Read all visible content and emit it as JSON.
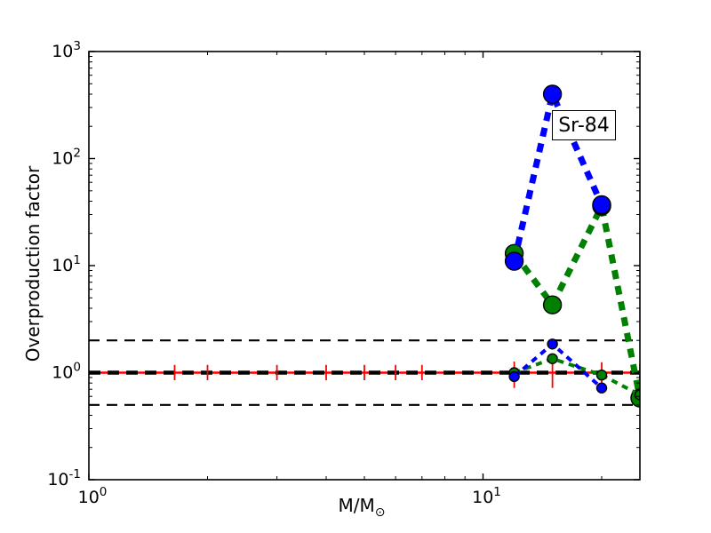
{
  "figure": {
    "background": "#ffffff"
  },
  "chart_data": {
    "type": "line",
    "title": "",
    "xlabel": "M/M⊙",
    "xlabel_main": "M/M",
    "xlabel_sub": "⊙",
    "ylabel": "Overproduction factor",
    "xscale": "log",
    "yscale": "log",
    "xlim": [
      1,
      25
    ],
    "ylim": [
      0.1,
      1000
    ],
    "grid": false,
    "legend": "none",
    "annotation": {
      "label": "Sr-84"
    },
    "x_ticks": [
      {
        "value": 1,
        "base": "10",
        "exp": "0"
      },
      {
        "value": 10,
        "base": "10",
        "exp": "1"
      }
    ],
    "x_minor_ticks": [
      2,
      3,
      4,
      5,
      6,
      7,
      8,
      9,
      20
    ],
    "y_ticks": [
      {
        "value": 1000,
        "base": "10",
        "exp": "3"
      },
      {
        "value": 100,
        "base": "10",
        "exp": "2"
      },
      {
        "value": 10,
        "base": "10",
        "exp": "1"
      },
      {
        "value": 1,
        "base": "10",
        "exp": "0"
      },
      {
        "value": 0.1,
        "base": "10",
        "exp": "-1"
      }
    ],
    "y_minor_ticks": [
      0.2,
      0.3,
      0.4,
      0.5,
      0.6,
      0.7,
      0.8,
      0.9,
      2,
      3,
      4,
      5,
      6,
      7,
      8,
      9,
      20,
      30,
      40,
      50,
      60,
      70,
      80,
      90,
      200,
      300,
      400,
      500,
      600,
      700,
      800,
      900
    ],
    "reference_lines": [
      {
        "name": "solar-ratio-line",
        "y": 1.0,
        "color": "#ff0000",
        "width": 2.5,
        "dash": null
      },
      {
        "name": "unity-line",
        "y": 1.0,
        "color": "#000000",
        "width": 4.5,
        "dash": [
          13,
          8
        ]
      },
      {
        "name": "upper-band-line",
        "y": 2.0,
        "color": "#000000",
        "width": 2.2,
        "dash": [
          12,
          8
        ]
      },
      {
        "name": "lower-band-line",
        "y": 0.5,
        "color": "#000000",
        "width": 2.2,
        "dash": [
          12,
          8
        ]
      }
    ],
    "error_bars": {
      "name": "solar-uncertainty-bars",
      "color": "#ff0000",
      "points": [
        {
          "x": 1.65,
          "lo": 0.85,
          "hi": 1.18
        },
        {
          "x": 2,
          "lo": 0.85,
          "hi": 1.18
        },
        {
          "x": 3,
          "lo": 0.85,
          "hi": 1.18
        },
        {
          "x": 4,
          "lo": 0.85,
          "hi": 1.18
        },
        {
          "x": 5,
          "lo": 0.85,
          "hi": 1.18
        },
        {
          "x": 6,
          "lo": 0.85,
          "hi": 1.18
        },
        {
          "x": 7,
          "lo": 0.85,
          "hi": 1.18
        },
        {
          "x": 12,
          "lo": 0.72,
          "hi": 1.27
        },
        {
          "x": 15,
          "lo": 0.72,
          "hi": 1.3
        },
        {
          "x": 20,
          "lo": 0.75,
          "hi": 1.25
        },
        {
          "x": 25,
          "lo": 0.78,
          "hi": 1.2
        }
      ]
    },
    "series": [
      {
        "name": "green-large",
        "color": "#008000",
        "line_width": 7,
        "dash": [
          10,
          8
        ],
        "marker": "circle",
        "marker_size": 20,
        "points": [
          [
            12,
            13
          ],
          [
            15,
            4.3
          ],
          [
            20,
            36
          ],
          [
            25,
            0.58
          ]
        ]
      },
      {
        "name": "blue-large",
        "color": "#0000ff",
        "line_width": 7,
        "dash": [
          10,
          8
        ],
        "marker": "circle",
        "marker_size": 20,
        "points": [
          [
            12,
            11
          ],
          [
            15,
            400
          ],
          [
            20,
            37
          ]
        ]
      },
      {
        "name": "green-small",
        "color": "#008000",
        "line_width": 4,
        "dash": [
          7,
          6
        ],
        "marker": "circle",
        "marker_size": 11,
        "points": [
          [
            12,
            1.0
          ],
          [
            15,
            1.35
          ],
          [
            20,
            0.95
          ],
          [
            25,
            0.62
          ]
        ]
      },
      {
        "name": "blue-small",
        "color": "#0000ff",
        "line_width": 4,
        "dash": [
          7,
          6
        ],
        "marker": "circle",
        "marker_size": 11,
        "points": [
          [
            12,
            0.92
          ],
          [
            15,
            1.85
          ],
          [
            20,
            0.72
          ]
        ]
      }
    ]
  }
}
